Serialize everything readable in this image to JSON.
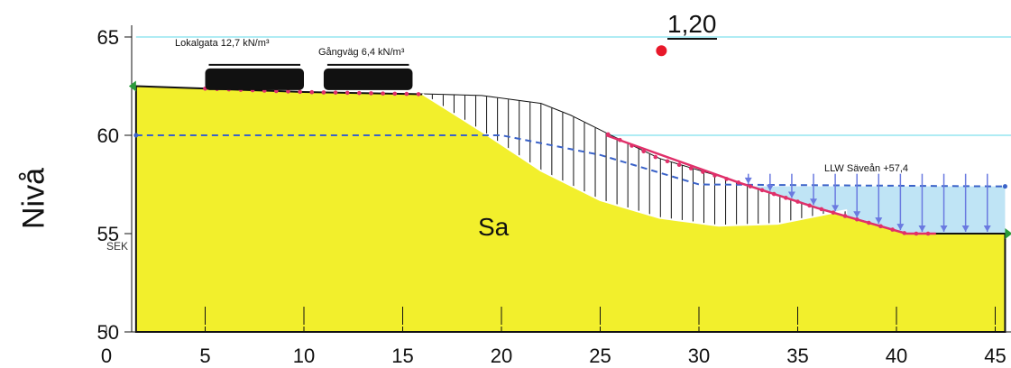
{
  "chart_data": {
    "type": "diagram",
    "ylabel": "Nivå",
    "x_ticks": [
      0,
      5,
      10,
      15,
      20,
      25,
      30,
      35,
      40,
      45
    ],
    "y_ticks": [
      50,
      55,
      60,
      65
    ],
    "xlim": [
      0,
      45.5
    ],
    "ylim": [
      50,
      65
    ],
    "safety_factor": "1,20",
    "soil_label": "Sa",
    "loads": [
      {
        "label": "Lokalgata 12,7 kN/m³",
        "x_from": 5,
        "x_to": 10
      },
      {
        "label": "Gångväg 6,4 kN/m³",
        "x_from": 11,
        "x_to": 15.5
      }
    ],
    "water_level_label": "LLW Säveån +57,4",
    "water_level": 57.4,
    "groundwater_level": 60,
    "datum_label": "SEK",
    "ground_profile": [
      [
        1.5,
        62.5
      ],
      [
        10,
        62.2
      ],
      [
        15.5,
        62.1
      ],
      [
        19,
        62.0
      ],
      [
        22,
        61.6
      ],
      [
        23.5,
        61.0
      ],
      [
        25.5,
        60.0
      ],
      [
        28,
        58.8
      ],
      [
        32,
        57.6
      ],
      [
        36,
        56.3
      ],
      [
        40.5,
        55.0
      ],
      [
        41.8,
        55.0
      ],
      [
        45.5,
        55.0
      ],
      [
        45.5,
        50.0
      ],
      [
        1.5,
        50.0
      ]
    ],
    "colors": {
      "soil": "#f2ef2c",
      "water": "#bfe4f5",
      "slip_hatch": "#111111",
      "groundwater_line": "#3a62c8",
      "surface_points": "#e0306a",
      "arrows": "#6a7ae0",
      "grid": "#5fd8e8",
      "fos_dot": "#e8182a"
    }
  }
}
